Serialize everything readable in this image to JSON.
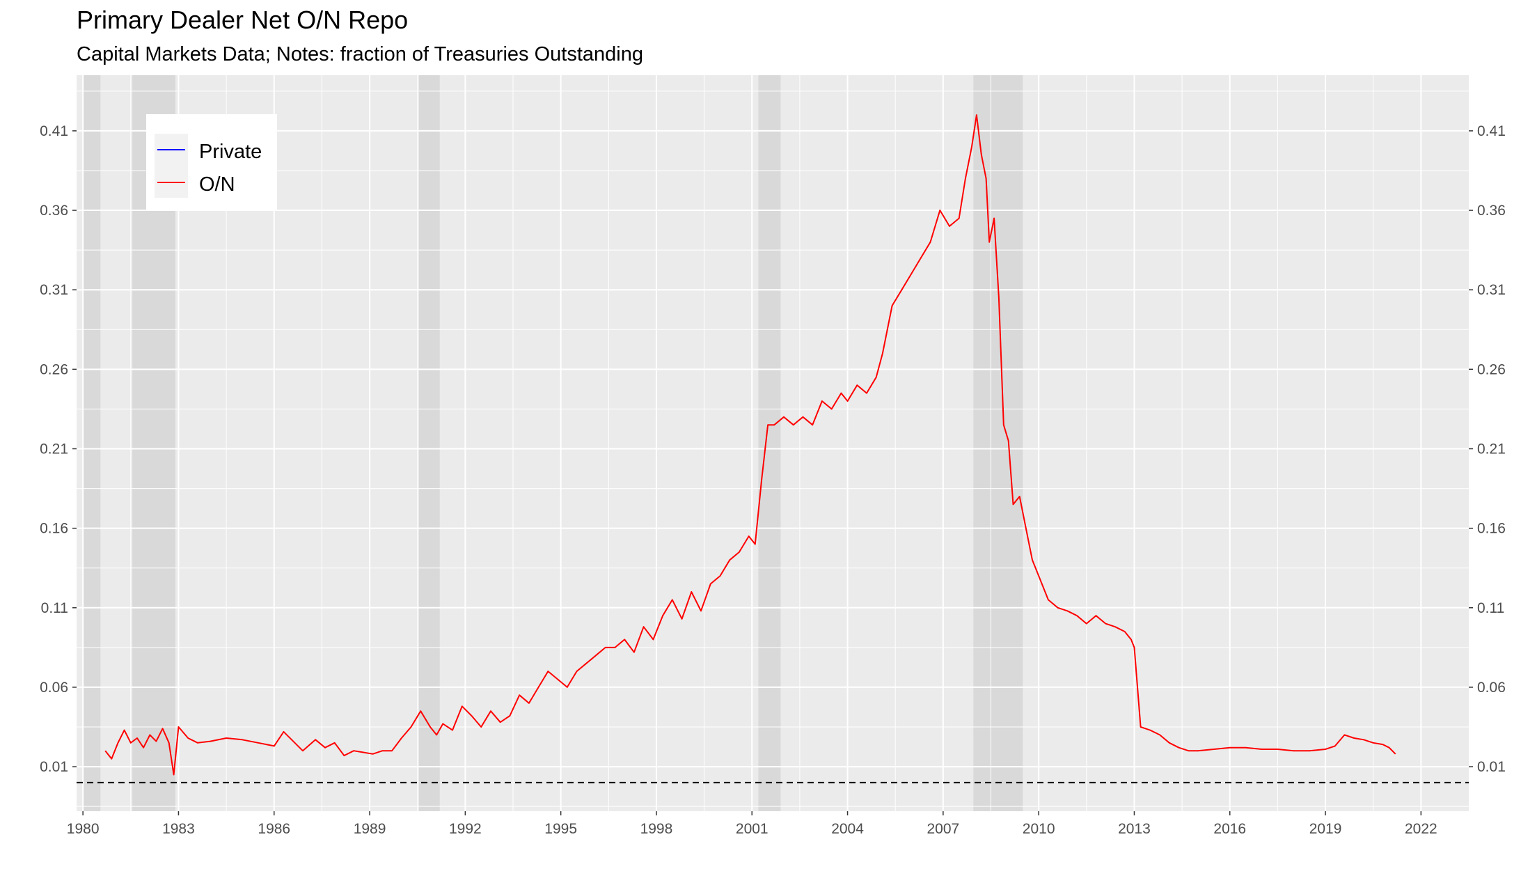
{
  "chart_data": {
    "type": "line",
    "title": "Primary Dealer Net O/N Repo",
    "subtitle": "Capital Markets Data; Notes: fraction of Treasuries Outstanding",
    "xlabel": "",
    "ylabel": "",
    "xlim": [
      1979.8,
      2023.5
    ],
    "ylim": [
      -0.018,
      0.445
    ],
    "x_ticks": [
      "1980",
      "1983",
      "1986",
      "1989",
      "1992",
      "1995",
      "1998",
      "2001",
      "2004",
      "2007",
      "2010",
      "2013",
      "2016",
      "2019",
      "2022"
    ],
    "y_ticks": [
      "0.01",
      "0.06",
      "0.11",
      "0.16",
      "0.21",
      "0.26",
      "0.31",
      "0.36",
      "0.41"
    ],
    "reference_line": {
      "y": 0,
      "style": "dashed"
    },
    "recessions": [
      [
        1980.0,
        1980.55
      ],
      [
        1981.55,
        1982.9
      ],
      [
        1990.55,
        1991.2
      ],
      [
        2001.2,
        2001.9
      ],
      [
        2007.95,
        2009.5
      ]
    ],
    "legend": {
      "position": "top-left",
      "entries": [
        {
          "name": "Private",
          "color": "#0000ff"
        },
        {
          "name": "O/N",
          "color": "#ff0000"
        }
      ]
    },
    "grid": true,
    "series": [
      {
        "name": "O/N",
        "color": "#ff0000",
        "x": [
          1980.7,
          1980.9,
          1981.1,
          1981.3,
          1981.5,
          1981.7,
          1981.9,
          1982.1,
          1982.3,
          1982.5,
          1982.7,
          1982.85,
          1983.0,
          1983.3,
          1983.6,
          1984.0,
          1984.5,
          1985.0,
          1985.5,
          1986.0,
          1986.3,
          1986.6,
          1986.9,
          1987.3,
          1987.6,
          1987.9,
          1988.2,
          1988.5,
          1988.8,
          1989.1,
          1989.4,
          1989.7,
          1990.0,
          1990.3,
          1990.6,
          1990.9,
          1991.1,
          1991.3,
          1991.6,
          1991.9,
          1992.2,
          1992.5,
          1992.8,
          1993.1,
          1993.4,
          1993.7,
          1994.0,
          1994.3,
          1994.6,
          1994.9,
          1995.2,
          1995.5,
          1995.8,
          1996.1,
          1996.4,
          1996.7,
          1997.0,
          1997.3,
          1997.6,
          1997.9,
          1998.2,
          1998.5,
          1998.8,
          1999.1,
          1999.4,
          1999.7,
          2000.0,
          2000.3,
          2000.6,
          2000.9,
          2001.1,
          2001.3,
          2001.5,
          2001.7,
          2002.0,
          2002.3,
          2002.6,
          2002.9,
          2003.2,
          2003.5,
          2003.8,
          2004.0,
          2004.3,
          2004.6,
          2004.9,
          2005.1,
          2005.4,
          2005.7,
          2006.0,
          2006.3,
          2006.6,
          2006.9,
          2007.2,
          2007.5,
          2007.7,
          2007.9,
          2008.05,
          2008.2,
          2008.35,
          2008.45,
          2008.6,
          2008.75,
          2008.9,
          2009.05,
          2009.2,
          2009.4,
          2009.6,
          2009.8,
          2010.0,
          2010.3,
          2010.6,
          2010.9,
          2011.2,
          2011.5,
          2011.8,
          2012.1,
          2012.4,
          2012.7,
          2012.9,
          2013.0,
          2013.2,
          2013.5,
          2013.8,
          2014.1,
          2014.4,
          2014.7,
          2015.0,
          2015.5,
          2016.0,
          2016.5,
          2017.0,
          2017.5,
          2018.0,
          2018.5,
          2019.0,
          2019.3,
          2019.6,
          2019.9,
          2020.2,
          2020.5,
          2020.8,
          2021.0,
          2021.2
        ],
        "y": [
          0.02,
          0.015,
          0.025,
          0.033,
          0.025,
          0.028,
          0.022,
          0.03,
          0.026,
          0.034,
          0.025,
          0.005,
          0.035,
          0.028,
          0.025,
          0.026,
          0.028,
          0.027,
          0.025,
          0.023,
          0.032,
          0.026,
          0.02,
          0.027,
          0.022,
          0.025,
          0.017,
          0.02,
          0.019,
          0.018,
          0.02,
          0.02,
          0.028,
          0.035,
          0.045,
          0.035,
          0.03,
          0.037,
          0.033,
          0.048,
          0.042,
          0.035,
          0.045,
          0.038,
          0.042,
          0.055,
          0.05,
          0.06,
          0.07,
          0.065,
          0.06,
          0.07,
          0.075,
          0.08,
          0.085,
          0.085,
          0.09,
          0.082,
          0.098,
          0.09,
          0.105,
          0.115,
          0.103,
          0.12,
          0.108,
          0.125,
          0.13,
          0.14,
          0.145,
          0.155,
          0.15,
          0.19,
          0.225,
          0.225,
          0.23,
          0.225,
          0.23,
          0.225,
          0.24,
          0.235,
          0.245,
          0.24,
          0.25,
          0.245,
          0.255,
          0.27,
          0.3,
          0.31,
          0.32,
          0.33,
          0.34,
          0.36,
          0.35,
          0.355,
          0.38,
          0.4,
          0.42,
          0.395,
          0.38,
          0.34,
          0.355,
          0.305,
          0.225,
          0.215,
          0.175,
          0.18,
          0.16,
          0.14,
          0.13,
          0.115,
          0.11,
          0.108,
          0.105,
          0.1,
          0.105,
          0.1,
          0.098,
          0.095,
          0.09,
          0.085,
          0.035,
          0.033,
          0.03,
          0.025,
          0.022,
          0.02,
          0.02,
          0.021,
          0.022,
          0.022,
          0.021,
          0.021,
          0.02,
          0.02,
          0.021,
          0.023,
          0.03,
          0.028,
          0.027,
          0.025,
          0.024,
          0.022,
          0.018
        ]
      }
    ]
  }
}
